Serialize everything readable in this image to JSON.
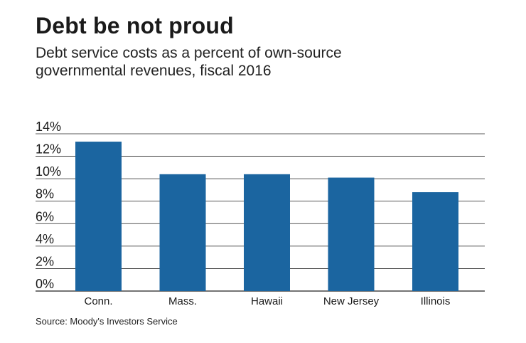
{
  "colors": {
    "bar": "#1b65a0",
    "grid": "#222222",
    "text": "#1a1a1a"
  },
  "title": "Debt be not proud",
  "subtitle": "Debt service costs as a percent of own-source governmental revenues, fiscal 2016",
  "source": "Source: Moody's Investors Service",
  "chart_data": {
    "type": "bar",
    "categories": [
      "Conn.",
      "Mass.",
      "Hawaii",
      "New Jersey",
      "Illinois"
    ],
    "values": [
      13.3,
      10.4,
      10.4,
      10.1,
      8.8
    ],
    "ylim": [
      0,
      14
    ],
    "yticks": [
      "0%",
      "2%",
      "4%",
      "6%",
      "8%",
      "10%",
      "12%",
      "14%"
    ],
    "grid": true,
    "legend": "none"
  }
}
